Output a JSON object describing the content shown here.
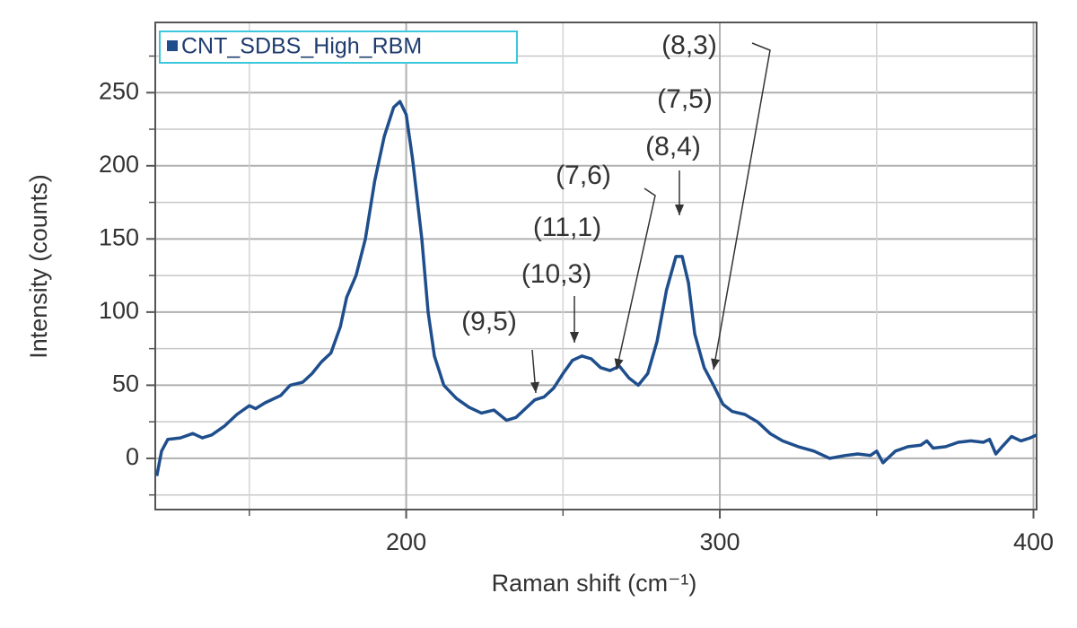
{
  "chart_data": {
    "type": "line",
    "x_label": "Raman shift (cm⁻¹)",
    "y_label": "Intensity (counts)",
    "series": [
      {
        "name": "CNT_SDBS_High_RBM",
        "color": "#1f4e8c",
        "x": [
          120.5,
          122,
          124,
          128,
          132,
          135,
          138,
          142,
          146,
          150,
          152,
          155,
          160,
          163,
          167,
          170,
          173,
          176,
          179,
          181,
          184,
          187,
          190,
          193,
          196,
          198,
          200,
          202,
          205,
          207,
          209,
          212,
          216,
          220,
          224,
          228,
          232,
          235,
          238,
          241,
          244,
          247,
          250,
          253,
          256,
          259,
          262,
          265,
          268,
          271,
          274,
          277,
          280,
          283,
          286,
          288,
          290,
          292,
          295,
          298,
          301,
          304,
          308,
          312,
          316,
          320,
          325,
          330,
          335,
          340,
          344,
          348,
          350,
          352,
          356,
          360,
          364,
          366,
          368,
          372,
          376,
          380,
          384,
          386,
          388,
          390,
          393,
          396,
          399,
          401
        ],
        "values": [
          -12,
          5,
          13,
          14,
          17,
          14,
          16,
          22,
          30,
          36,
          34,
          38,
          43,
          50,
          52,
          58,
          66,
          72,
          90,
          110,
          125,
          150,
          190,
          220,
          240,
          244,
          235,
          205,
          150,
          100,
          70,
          50,
          41,
          35,
          31,
          33,
          26,
          28,
          34,
          40,
          42,
          48,
          58,
          67,
          70,
          68,
          62,
          60,
          63,
          55,
          50,
          58,
          80,
          115,
          138,
          138,
          120,
          85,
          62,
          50,
          37,
          32,
          30,
          25,
          17,
          12,
          8,
          5,
          0,
          2,
          3,
          2,
          5,
          -3,
          5,
          8,
          9,
          12,
          7,
          8,
          11,
          12,
          11,
          13,
          3,
          8,
          15,
          12,
          14,
          16
        ]
      }
    ],
    "xlim": [
      120,
      401
    ],
    "ylim": [
      -35,
      298
    ],
    "xticks": [
      200,
      300,
      400
    ],
    "x_minor_ticks": [
      150,
      250,
      350
    ],
    "yticks": [
      0,
      50,
      100,
      150,
      200,
      250
    ],
    "y_minor_ticks": [
      -25,
      25,
      75,
      125,
      175,
      225,
      275
    ],
    "grid": true,
    "annotations": [
      "(8,3)",
      "(7,5)",
      "(8,4)",
      "(7,6)",
      "(11,1)",
      "(10,3)",
      "(9,5)"
    ]
  }
}
